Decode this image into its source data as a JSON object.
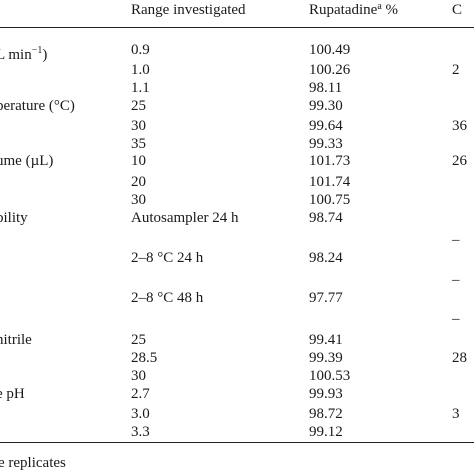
{
  "table": {
    "headers": {
      "range": "Range investigated",
      "rupatadine": "Rupatadine",
      "rupatadine_sup": "a",
      "rupatadine_unit": "%",
      "extra": "C"
    },
    "flow_rate_label_prefix": "L min",
    "flow_rate_label_exp": "−1",
    "flow_rate_label_suffix": ")",
    "rows": [
      {
        "param": "",
        "range": "0.9",
        "pct": "100.49",
        "extra": ""
      },
      {
        "param": "",
        "range": "1.0",
        "pct": "100.26",
        "extra": "2"
      },
      {
        "param": "",
        "range": "1.1",
        "pct": "98.11",
        "extra": ""
      },
      {
        "param": "perature (°C)",
        "range": "25",
        "pct": "99.30",
        "extra": ""
      },
      {
        "param": "",
        "range": "30",
        "pct": "99.64",
        "extra": "36"
      },
      {
        "param": "",
        "range": "35",
        "pct": "99.33",
        "extra": ""
      },
      {
        "param": "ume (µL)",
        "range": "10",
        "pct": "101.73",
        "extra": "26"
      },
      {
        "param": "",
        "range": "20",
        "pct": "101.74",
        "extra": ""
      },
      {
        "param": "",
        "range": "30",
        "pct": "100.75",
        "extra": ""
      },
      {
        "param": "bility",
        "range": "Autosampler 24 h",
        "pct": "98.74",
        "extra": ""
      },
      {
        "param": "",
        "range": "",
        "pct": "",
        "extra": "–"
      },
      {
        "param": "",
        "range": "2–8 °C 24 h",
        "pct": "98.24",
        "extra": ""
      },
      {
        "param": "",
        "range": "",
        "pct": "",
        "extra": "–"
      },
      {
        "param": "",
        "range": "2–8 °C 48 h",
        "pct": "97.77",
        "extra": ""
      },
      {
        "param": "",
        "range": "",
        "pct": "",
        "extra": "–"
      },
      {
        "param": "nitrile",
        "range": "25",
        "pct": "99.41",
        "extra": ""
      },
      {
        "param": "",
        "range": "28.5",
        "pct": "99.39",
        "extra": "28"
      },
      {
        "param": "",
        "range": "30",
        "pct": "100.53",
        "extra": ""
      },
      {
        "param": "e pH",
        "range": "2.7",
        "pct": "99.93",
        "extra": ""
      },
      {
        "param": "",
        "range": "3.0",
        "pct": "98.72",
        "extra": "3"
      },
      {
        "param": "",
        "range": "3.3",
        "pct": "99.12",
        "extra": ""
      }
    ]
  },
  "footnote": "e replicates"
}
